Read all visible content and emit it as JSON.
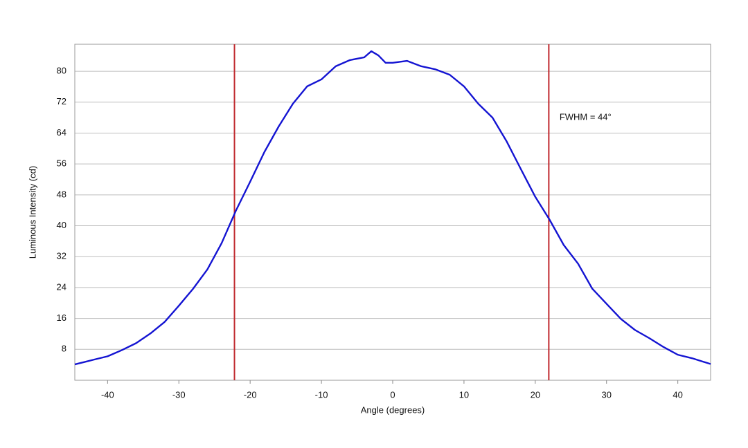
{
  "chart_data": {
    "type": "line",
    "x_label": "Angle (degrees)",
    "y_label": "Luminous Intensity (cd)",
    "x": [
      -44.6,
      -42,
      -40,
      -38,
      -36,
      -34,
      -32,
      -30,
      -28,
      -26,
      -24,
      -22,
      -20,
      -18,
      -16,
      -14,
      -12,
      -10,
      -8,
      -6,
      -4,
      -3,
      -2,
      -1,
      0,
      2,
      4,
      6,
      8,
      10,
      12,
      14,
      16,
      18,
      20,
      22,
      24,
      26,
      28,
      30,
      32,
      34,
      36,
      38,
      40,
      42,
      44.6
    ],
    "series": [
      {
        "color": "#1414d2",
        "values": [
          4.1,
          5.3,
          6.2,
          7.8,
          9.6,
          12.1,
          15.1,
          19.3,
          23.7,
          28.7,
          35.5,
          43.9,
          51.4,
          59.1,
          65.7,
          71.6,
          76.1,
          77.9,
          81.3,
          82.9,
          83.6,
          85.2,
          84.1,
          82.2,
          82.2,
          82.7,
          81.3,
          80.5,
          79.1,
          76.1,
          71.6,
          68.0,
          61.8,
          54.6,
          47.5,
          41.6,
          35.0,
          30.2,
          23.7,
          19.8,
          15.9,
          13.0,
          10.9,
          8.6,
          6.6,
          5.7,
          4.2
        ]
      }
    ],
    "vlines": {
      "values": [
        -22.2,
        21.9
      ],
      "color": "#c0282d"
    },
    "annotation": {
      "text": "FWHM = 44°",
      "x": 23.4,
      "y": 68
    },
    "xlim": [
      -44.6,
      44.6
    ],
    "xticks": [
      -40,
      -30,
      -20,
      -10,
      0,
      10,
      20,
      30,
      40
    ],
    "ylim": [
      0,
      87
    ],
    "yticks": [
      8,
      16,
      24,
      32,
      40,
      48,
      56,
      64,
      72,
      80
    ],
    "grid": true
  }
}
